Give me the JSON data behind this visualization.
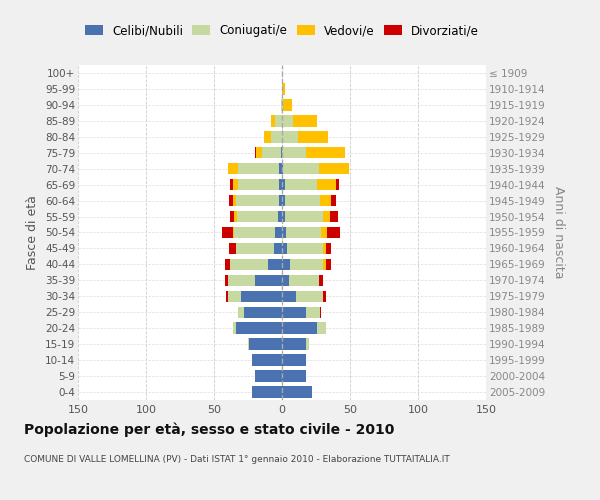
{
  "age_groups": [
    "0-4",
    "5-9",
    "10-14",
    "15-19",
    "20-24",
    "25-29",
    "30-34",
    "35-39",
    "40-44",
    "45-49",
    "50-54",
    "55-59",
    "60-64",
    "65-69",
    "70-74",
    "75-79",
    "80-84",
    "85-89",
    "90-94",
    "95-99",
    "100+"
  ],
  "birth_years": [
    "2005-2009",
    "2000-2004",
    "1995-1999",
    "1990-1994",
    "1985-1989",
    "1980-1984",
    "1975-1979",
    "1970-1974",
    "1965-1969",
    "1960-1964",
    "1955-1959",
    "1950-1954",
    "1945-1949",
    "1940-1944",
    "1935-1939",
    "1930-1934",
    "1925-1929",
    "1920-1924",
    "1915-1919",
    "1910-1914",
    "≤ 1909"
  ],
  "male_celibi": [
    22,
    20,
    22,
    24,
    34,
    28,
    30,
    20,
    10,
    6,
    5,
    3,
    2,
    2,
    2,
    1,
    0,
    0,
    0,
    0,
    0
  ],
  "male_coniugati": [
    0,
    0,
    0,
    1,
    2,
    4,
    10,
    20,
    28,
    28,
    30,
    30,
    32,
    30,
    30,
    14,
    8,
    5,
    1,
    0,
    0
  ],
  "male_vedovi": [
    0,
    0,
    0,
    0,
    0,
    0,
    0,
    0,
    0,
    0,
    1,
    2,
    2,
    4,
    8,
    4,
    5,
    3,
    0,
    0,
    0
  ],
  "male_divorziati": [
    0,
    0,
    0,
    0,
    0,
    0,
    1,
    2,
    4,
    5,
    8,
    3,
    3,
    2,
    0,
    1,
    0,
    0,
    0,
    0,
    0
  ],
  "female_nubili": [
    22,
    18,
    18,
    18,
    26,
    18,
    10,
    5,
    6,
    4,
    3,
    2,
    2,
    2,
    1,
    0,
    0,
    0,
    0,
    0,
    0
  ],
  "female_coniugate": [
    0,
    0,
    0,
    2,
    6,
    10,
    20,
    22,
    24,
    26,
    26,
    28,
    26,
    24,
    26,
    18,
    12,
    8,
    1,
    0,
    0
  ],
  "female_vedove": [
    0,
    0,
    0,
    0,
    0,
    0,
    0,
    0,
    2,
    2,
    4,
    5,
    8,
    14,
    22,
    28,
    22,
    18,
    6,
    2,
    0
  ],
  "female_divorziate": [
    0,
    0,
    0,
    0,
    0,
    1,
    2,
    3,
    4,
    4,
    10,
    6,
    4,
    2,
    0,
    0,
    0,
    0,
    0,
    0,
    0
  ],
  "color_celibi": "#4a72b0",
  "color_coniugati": "#c5d9a0",
  "color_vedovi": "#ffc000",
  "color_divorziati": "#cc0000",
  "xlim": 150,
  "title": "Popolazione per età, sesso e stato civile - 2010",
  "subtitle": "COMUNE DI VALLE LOMELLINA (PV) - Dati ISTAT 1° gennaio 2010 - Elaborazione TUTTAITALIA.IT",
  "ylabel_left": "Fasce di età",
  "ylabel_right": "Anni di nascita",
  "legend_labels": [
    "Celibi/Nubili",
    "Coniugati/e",
    "Vedovi/e",
    "Divorziati/e"
  ],
  "bg_color": "#f0f0f0",
  "plot_bg": "#ffffff"
}
